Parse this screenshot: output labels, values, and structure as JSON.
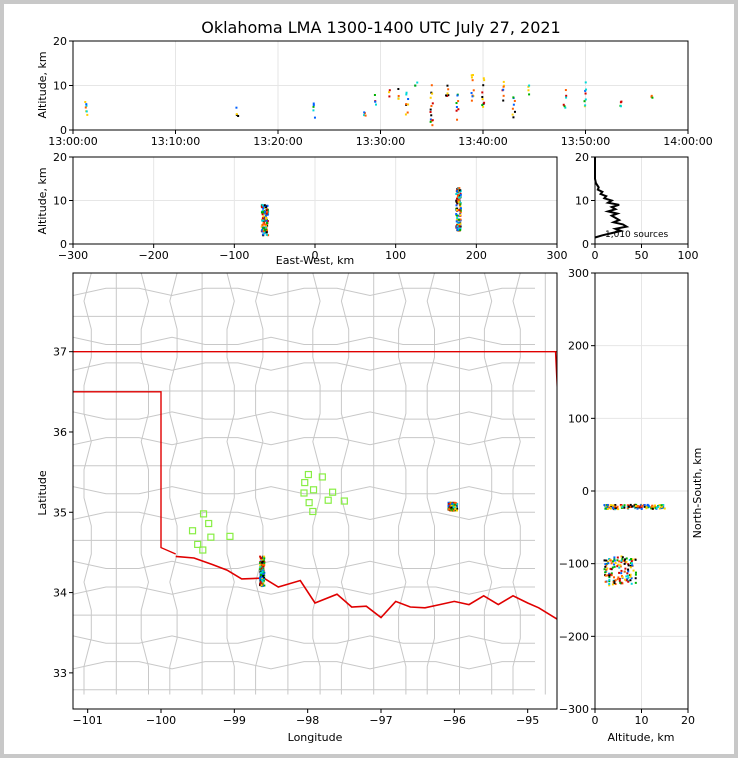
{
  "title": "Oklahoma LMA 1300-1400 UTC July 27, 2021",
  "colors": {
    "state_border": "#e00000",
    "county_lines": "#c8c8c8",
    "stations": "#88ee44",
    "grid": "#e6e6e6",
    "source_palette": [
      "#00d8d8",
      "#0060ff",
      "#00b000",
      "#ffd000",
      "#ff6000",
      "#d00000",
      "#000000"
    ]
  },
  "sources_count_label": "1,010 sources",
  "chart_data": [
    {
      "id": "time_altitude",
      "type": "scatter",
      "xlabel": "",
      "ylabel": "Altitude, km",
      "x_ticks": [
        "13:00:00",
        "13:10:00",
        "13:20:00",
        "13:30:00",
        "13:40:00",
        "13:50:00",
        "14:00:00"
      ],
      "xlim_minutes": [
        0,
        60
      ],
      "ylim": [
        0,
        20
      ],
      "y_ticks": [
        "0",
        "10",
        "20"
      ],
      "flashes": [
        {
          "t": 1.3,
          "alt_min": 3,
          "alt_max": 8
        },
        {
          "t": 16.0,
          "alt_min": 3,
          "alt_max": 6
        },
        {
          "t": 23.5,
          "alt_min": 2.5,
          "alt_max": 6
        },
        {
          "t": 28.5,
          "alt_min": 2,
          "alt_max": 5
        },
        {
          "t": 29.5,
          "alt_min": 5,
          "alt_max": 8
        },
        {
          "t": 30.8,
          "alt_min": 7,
          "alt_max": 9
        },
        {
          "t": 31.8,
          "alt_min": 7,
          "alt_max": 10
        },
        {
          "t": 32.6,
          "alt_min": 3,
          "alt_max": 9
        },
        {
          "t": 33.5,
          "alt_min": 9,
          "alt_max": 11
        },
        {
          "t": 35.0,
          "alt_min": 1,
          "alt_max": 11
        },
        {
          "t": 36.5,
          "alt_min": 6,
          "alt_max": 10
        },
        {
          "t": 37.5,
          "alt_min": 2,
          "alt_max": 8
        },
        {
          "t": 39.0,
          "alt_min": 6,
          "alt_max": 13
        },
        {
          "t": 40.0,
          "alt_min": 5,
          "alt_max": 12
        },
        {
          "t": 42.0,
          "alt_min": 6,
          "alt_max": 11
        },
        {
          "t": 43.0,
          "alt_min": 2,
          "alt_max": 8
        },
        {
          "t": 44.5,
          "alt_min": 8,
          "alt_max": 11
        },
        {
          "t": 48.0,
          "alt_min": 5,
          "alt_max": 9
        },
        {
          "t": 50.0,
          "alt_min": 5,
          "alt_max": 11
        },
        {
          "t": 53.5,
          "alt_min": 5,
          "alt_max": 8
        },
        {
          "t": 56.5,
          "alt_min": 7,
          "alt_max": 8
        }
      ]
    },
    {
      "id": "ew_altitude",
      "type": "scatter",
      "xlabel": "East-West, km",
      "ylabel": "Altitude, km",
      "x_ticks": [
        "−300",
        "−200",
        "−100",
        "0",
        "100",
        "200",
        "300"
      ],
      "xlim": [
        -300,
        300
      ],
      "ylim": [
        0,
        20
      ],
      "y_ticks": [
        "0",
        "10",
        "20"
      ],
      "clusters": [
        {
          "x": -62,
          "alt_min": 2,
          "alt_max": 9,
          "spread": 8
        },
        {
          "x": 178,
          "alt_min": 3,
          "alt_max": 13,
          "spread": 6
        }
      ]
    },
    {
      "id": "altitude_histogram",
      "type": "line",
      "x_ticks": [
        "0",
        "50",
        "100"
      ],
      "xlim": [
        0,
        100
      ],
      "ylim": [
        0,
        20
      ],
      "y_ticks": [
        "0",
        "10",
        "20"
      ],
      "profile": [
        {
          "alt": 1.5,
          "count": 0
        },
        {
          "alt": 2,
          "count": 8
        },
        {
          "alt": 2.5,
          "count": 18
        },
        {
          "alt": 3,
          "count": 28
        },
        {
          "alt": 3.5,
          "count": 22
        },
        {
          "alt": 4,
          "count": 34
        },
        {
          "alt": 4.5,
          "count": 30
        },
        {
          "alt": 5,
          "count": 20
        },
        {
          "alt": 5.5,
          "count": 26
        },
        {
          "alt": 6,
          "count": 22
        },
        {
          "alt": 6.5,
          "count": 18
        },
        {
          "alt": 7,
          "count": 24
        },
        {
          "alt": 7.5,
          "count": 14
        },
        {
          "alt": 8,
          "count": 22
        },
        {
          "alt": 8.5,
          "count": 18
        },
        {
          "alt": 9,
          "count": 26
        },
        {
          "alt": 9.5,
          "count": 14
        },
        {
          "alt": 10,
          "count": 18
        },
        {
          "alt": 10.5,
          "count": 10
        },
        {
          "alt": 11,
          "count": 12
        },
        {
          "alt": 11.5,
          "count": 6
        },
        {
          "alt": 12,
          "count": 8
        },
        {
          "alt": 12.5,
          "count": 3
        },
        {
          "alt": 13,
          "count": 4
        },
        {
          "alt": 14,
          "count": 1
        },
        {
          "alt": 15,
          "count": 0
        },
        {
          "alt": 20,
          "count": 0
        }
      ]
    },
    {
      "id": "plan_map",
      "type": "scatter",
      "xlabel": "Longitude",
      "ylabel": "Latitude",
      "x_ticks": [
        "−101",
        "−100",
        "−99",
        "−98",
        "−97",
        "−96",
        "−95"
      ],
      "x_tick_values": [
        -101,
        -100,
        -99,
        -98,
        -97,
        -96,
        -95
      ],
      "y_ticks": [
        "33",
        "34",
        "35",
        "36",
        "37"
      ],
      "y_tick_values": [
        33,
        34,
        35,
        36,
        37
      ],
      "xlim": [
        -101.2,
        -94.6
      ],
      "ylim": [
        32.55,
        37.98
      ],
      "clusters": [
        {
          "lon": -98.62,
          "lat_min": 34.08,
          "lat_max": 34.45,
          "spread": 0.06
        },
        {
          "lon": -96.02,
          "lat_min": 35.02,
          "lat_max": 35.12,
          "spread": 0.12
        }
      ],
      "stations": [
        {
          "lon": -97.99,
          "lat": 35.47
        },
        {
          "lon": -97.8,
          "lat": 35.44
        },
        {
          "lon": -98.04,
          "lat": 35.37
        },
        {
          "lon": -97.92,
          "lat": 35.28
        },
        {
          "lon": -98.05,
          "lat": 35.24
        },
        {
          "lon": -97.66,
          "lat": 35.25
        },
        {
          "lon": -97.98,
          "lat": 35.12
        },
        {
          "lon": -97.72,
          "lat": 35.15
        },
        {
          "lon": -97.5,
          "lat": 35.14
        },
        {
          "lon": -97.93,
          "lat": 35.01
        },
        {
          "lon": -99.42,
          "lat": 34.98
        },
        {
          "lon": -99.35,
          "lat": 34.86
        },
        {
          "lon": -99.57,
          "lat": 34.77
        },
        {
          "lon": -99.32,
          "lat": 34.69
        },
        {
          "lon": -99.06,
          "lat": 34.7
        },
        {
          "lon": -99.5,
          "lat": 34.6
        },
        {
          "lon": -99.43,
          "lat": 34.53
        }
      ]
    },
    {
      "id": "altitude_ns",
      "type": "scatter",
      "xlabel": "Altitude, km",
      "ylabel": "North-South, km",
      "x_ticks": [
        "0",
        "10",
        "20"
      ],
      "xlim": [
        0,
        20
      ],
      "y_ticks": [
        "−300",
        "−200",
        "−100",
        "0",
        "100",
        "200",
        "300"
      ],
      "ylim": [
        -300,
        300
      ],
      "clusters": [
        {
          "ns": -22,
          "alt_min": 2,
          "alt_max": 15,
          "spread_ns": 3
        },
        {
          "ns": -110,
          "alt_min": 2,
          "alt_max": 9,
          "spread_ns": 20
        }
      ]
    }
  ]
}
